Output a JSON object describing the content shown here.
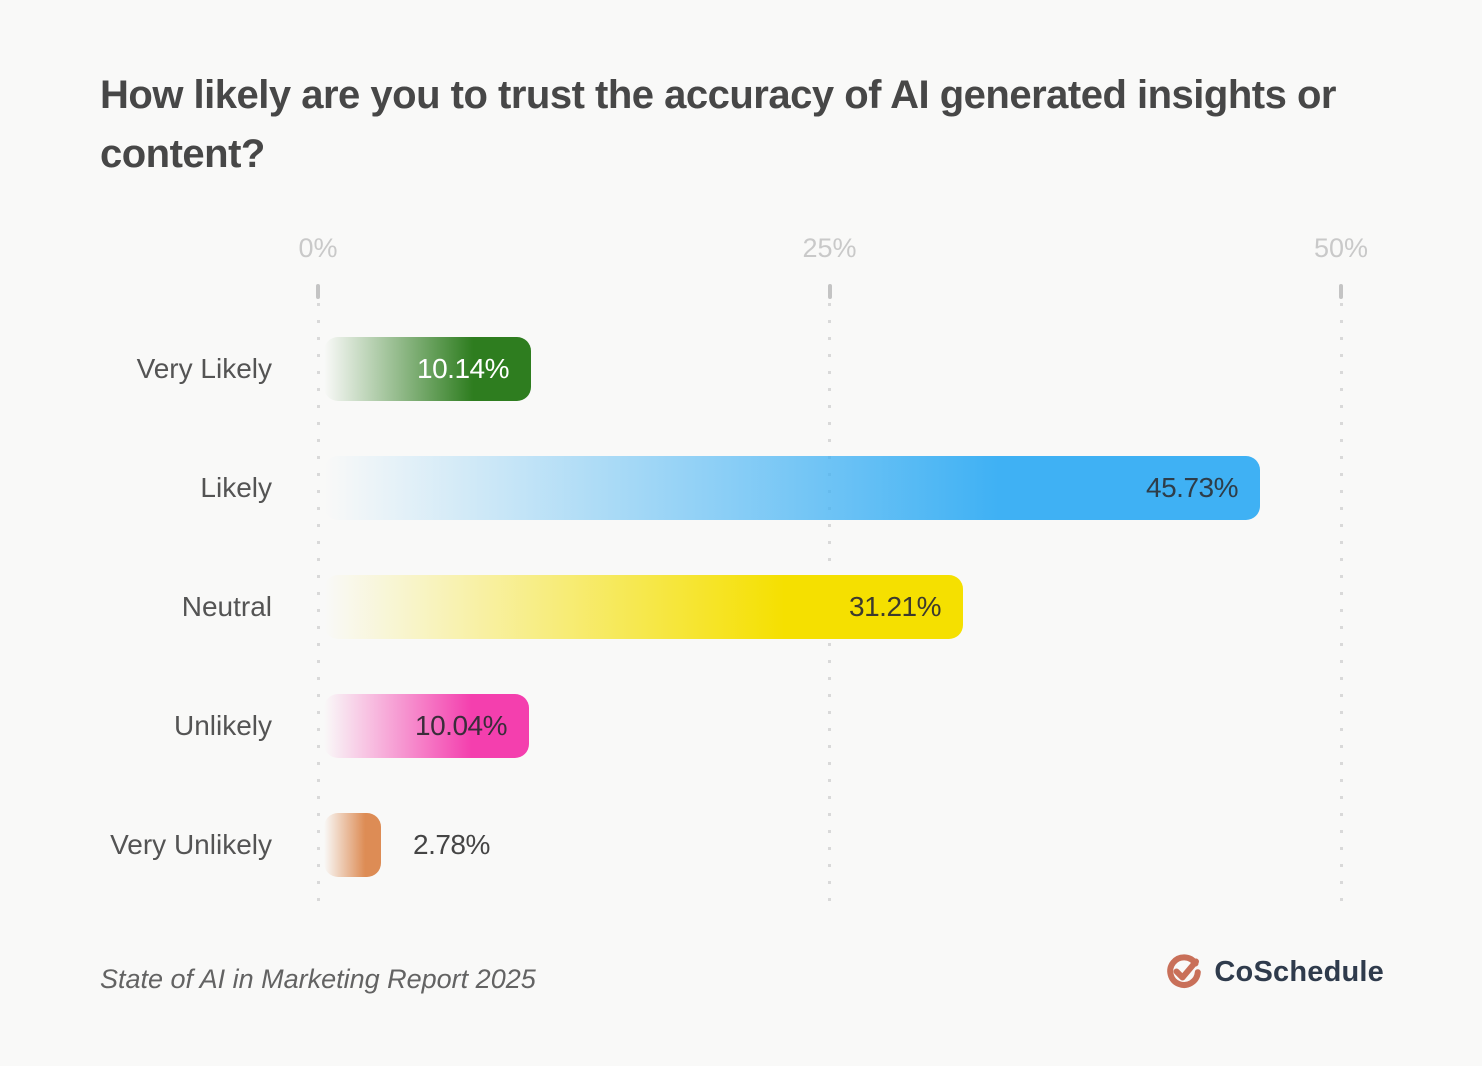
{
  "page": {
    "background": "#f9f9f8",
    "title": "How likely are you to trust the accuracy of AI generated insights or content?"
  },
  "chart_data": {
    "type": "bar",
    "orientation": "horizontal",
    "title": "How likely are you to trust the accuracy of AI generated insights or content?",
    "categories": [
      "Very Likely",
      "Likely",
      "Neutral",
      "Unlikely",
      "Very Unlikely"
    ],
    "values": [
      10.14,
      45.73,
      31.21,
      10.04,
      2.78
    ],
    "value_labels": [
      "10.14%",
      "45.73%",
      "31.21%",
      "10.04%",
      "2.78%"
    ],
    "xlim": [
      0,
      50
    ],
    "tick_values": [
      0,
      25,
      50
    ],
    "tick_labels": [
      "0%",
      "25%",
      "50%"
    ],
    "grid": "dotted-vertical",
    "legend": "none",
    "bar_colors": [
      "#2e7d1f",
      "#3fb1f4",
      "#f5e000",
      "#f43fae",
      "#dd8c55"
    ],
    "bar_gradient_start": "rgba(255,255,255,0)",
    "value_text_colors": [
      "#ffffff",
      "#2e3d49",
      "#3c3a2e",
      "#3a2d3a",
      "#454545"
    ],
    "value_label_position": [
      "inside",
      "inside",
      "inside",
      "inside",
      "outside"
    ]
  },
  "footer": {
    "source": "State of AI in Marketing Report 2025",
    "brand_name": "CoSchedule",
    "brand_color": "#c97059"
  }
}
